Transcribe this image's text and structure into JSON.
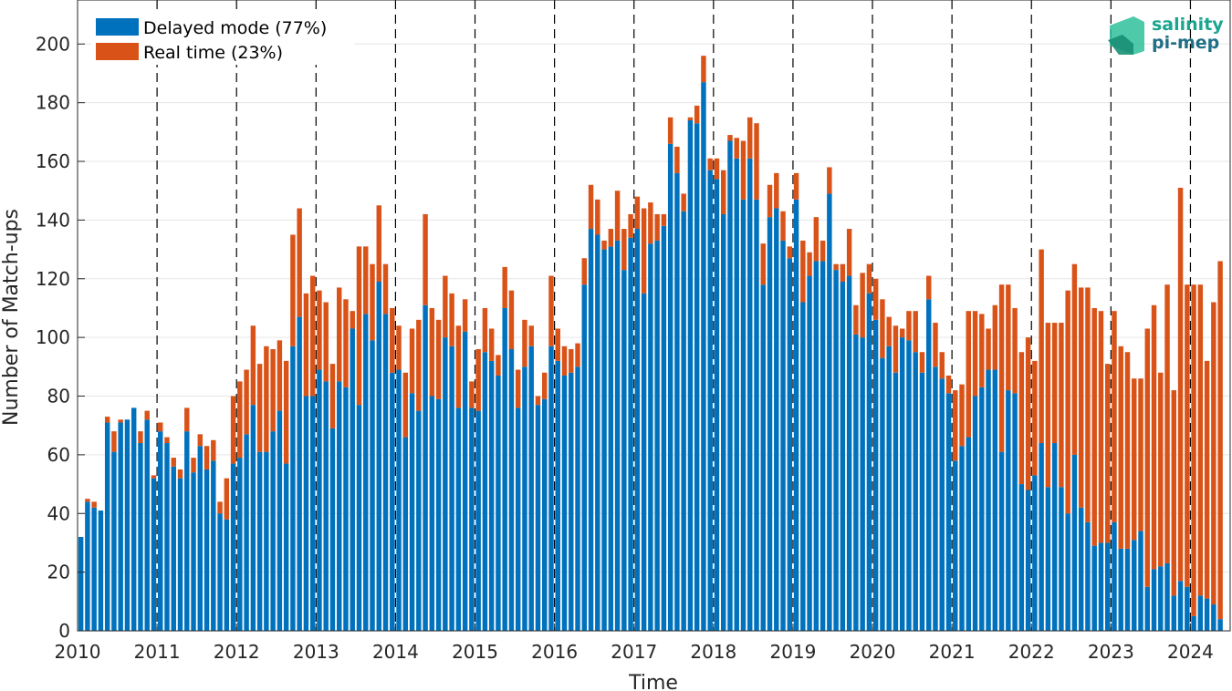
{
  "chart_data": {
    "type": "bar",
    "stacked": true,
    "xlabel": "Time",
    "ylabel": "Number of Match-ups",
    "ylim": [
      0,
      215
    ],
    "yticks": [
      0,
      20,
      40,
      60,
      80,
      100,
      120,
      140,
      160,
      180,
      200
    ],
    "xticks": [
      "2010",
      "2011",
      "2012",
      "2013",
      "2014",
      "2015",
      "2016",
      "2017",
      "2018",
      "2019",
      "2020",
      "2021",
      "2022",
      "2023",
      "2024"
    ],
    "xrange": [
      "2010-01",
      "2024-06"
    ],
    "year_divider_lines": "dashed vertical line at each year start",
    "grid": true,
    "legend_position": "top-left",
    "logo": {
      "line1": "salinity",
      "line2": "pi-mep"
    },
    "colors": {
      "delayed": "#0072bd",
      "realtime": "#d95319"
    },
    "series": [
      {
        "name": "Delayed mode (77%)",
        "color": "#0072bd"
      },
      {
        "name": "Real time (23%)",
        "color": "#d95319"
      }
    ],
    "categories": [
      "2010-01",
      "2010-02",
      "2010-03",
      "2010-04",
      "2010-05",
      "2010-06",
      "2010-07",
      "2010-08",
      "2010-09",
      "2010-10",
      "2010-11",
      "2010-12",
      "2011-01",
      "2011-02",
      "2011-03",
      "2011-04",
      "2011-05",
      "2011-06",
      "2011-07",
      "2011-08",
      "2011-09",
      "2011-10",
      "2011-11",
      "2011-12",
      "2012-01",
      "2012-02",
      "2012-03",
      "2012-04",
      "2012-05",
      "2012-06",
      "2012-07",
      "2012-08",
      "2012-09",
      "2012-10",
      "2012-11",
      "2012-12",
      "2013-01",
      "2013-02",
      "2013-03",
      "2013-04",
      "2013-05",
      "2013-06",
      "2013-07",
      "2013-08",
      "2013-09",
      "2013-10",
      "2013-11",
      "2013-12",
      "2014-01",
      "2014-02",
      "2014-03",
      "2014-04",
      "2014-05",
      "2014-06",
      "2014-07",
      "2014-08",
      "2014-09",
      "2014-10",
      "2014-11",
      "2014-12",
      "2015-01",
      "2015-02",
      "2015-03",
      "2015-04",
      "2015-05",
      "2015-06",
      "2015-07",
      "2015-08",
      "2015-09",
      "2015-10",
      "2015-11",
      "2015-12",
      "2016-01",
      "2016-02",
      "2016-03",
      "2016-04",
      "2016-05",
      "2016-06",
      "2016-07",
      "2016-08",
      "2016-09",
      "2016-10",
      "2016-11",
      "2016-12",
      "2017-01",
      "2017-02",
      "2017-03",
      "2017-04",
      "2017-05",
      "2017-06",
      "2017-07",
      "2017-08",
      "2017-09",
      "2017-10",
      "2017-11",
      "2017-12",
      "2018-01",
      "2018-02",
      "2018-03",
      "2018-04",
      "2018-05",
      "2018-06",
      "2018-07",
      "2018-08",
      "2018-09",
      "2018-10",
      "2018-11",
      "2018-12",
      "2019-01",
      "2019-02",
      "2019-03",
      "2019-04",
      "2019-05",
      "2019-06",
      "2019-07",
      "2019-08",
      "2019-09",
      "2019-10",
      "2019-11",
      "2019-12",
      "2020-01",
      "2020-02",
      "2020-03",
      "2020-04",
      "2020-05",
      "2020-06",
      "2020-07",
      "2020-08",
      "2020-09",
      "2020-10",
      "2020-11",
      "2020-12",
      "2021-01",
      "2021-02",
      "2021-03",
      "2021-04",
      "2021-05",
      "2021-06",
      "2021-07",
      "2021-08",
      "2021-09",
      "2021-10",
      "2021-11",
      "2021-12",
      "2022-01",
      "2022-02",
      "2022-03",
      "2022-04",
      "2022-05",
      "2022-06",
      "2022-07",
      "2022-08",
      "2022-09",
      "2022-10",
      "2022-11",
      "2022-12",
      "2023-01",
      "2023-02",
      "2023-03",
      "2023-04",
      "2023-05",
      "2023-06",
      "2023-07",
      "2023-08",
      "2023-09",
      "2023-10",
      "2023-11",
      "2023-12",
      "2024-01",
      "2024-02",
      "2024-03",
      "2024-04",
      "2024-05"
    ],
    "delayed": [
      32,
      44,
      42,
      41,
      71,
      61,
      71,
      72,
      76,
      64,
      72,
      52,
      68,
      64,
      56,
      52,
      68,
      54,
      63,
      55,
      58,
      40,
      38,
      57,
      59,
      67,
      77,
      61,
      61,
      68,
      75,
      57,
      97,
      107,
      80,
      80,
      89,
      85,
      69,
      85,
      83,
      103,
      77,
      108,
      99,
      119,
      108,
      88,
      89,
      66,
      81,
      75,
      111,
      80,
      79,
      100,
      97,
      76,
      102,
      76,
      75,
      95,
      92,
      87,
      110,
      96,
      76,
      90,
      97,
      77,
      79,
      97,
      92,
      87,
      88,
      90,
      118,
      137,
      135,
      130,
      131,
      133,
      123,
      134,
      137,
      115,
      132,
      133,
      138,
      166,
      156,
      143,
      174,
      173,
      187,
      157,
      154,
      142,
      167,
      161,
      147,
      161,
      147,
      118,
      141,
      144,
      133,
      127,
      147,
      112,
      121,
      126,
      126,
      149,
      123,
      119,
      121,
      101,
      100,
      115,
      106,
      93,
      97,
      88,
      100,
      99,
      95,
      88,
      113,
      90,
      86,
      81,
      58,
      63,
      66,
      80,
      83,
      89,
      89,
      61,
      82,
      81,
      50,
      48,
      53,
      64,
      49,
      64,
      49,
      40,
      60,
      42,
      37,
      29,
      30,
      30,
      37,
      28,
      28,
      31,
      34,
      15,
      21,
      22,
      23,
      12,
      17,
      15,
      5,
      12,
      11,
      9,
      4
    ],
    "realtime": [
      0,
      1,
      2,
      0,
      2,
      7,
      1,
      0,
      0,
      4,
      3,
      1,
      3,
      2,
      3,
      3,
      8,
      5,
      4,
      8,
      7,
      4,
      14,
      23,
      26,
      22,
      27,
      30,
      36,
      28,
      24,
      35,
      38,
      37,
      35,
      41,
      27,
      27,
      22,
      32,
      30,
      6,
      54,
      23,
      26,
      26,
      17,
      22,
      15,
      22,
      22,
      31,
      31,
      30,
      27,
      21,
      18,
      28,
      11,
      9,
      21,
      15,
      11,
      7,
      14,
      20,
      13,
      16,
      7,
      3,
      9,
      24,
      11,
      10,
      8,
      8,
      9,
      15,
      12,
      3,
      6,
      17,
      14,
      8,
      11,
      29,
      14,
      9,
      4,
      9,
      9,
      6,
      1,
      6,
      9,
      4,
      7,
      15,
      2,
      7,
      20,
      14,
      26,
      14,
      11,
      12,
      10,
      4,
      9,
      21,
      8,
      15,
      7,
      9,
      2,
      6,
      16,
      10,
      22,
      10,
      14,
      20,
      10,
      16,
      3,
      10,
      14,
      7,
      8,
      15,
      9,
      6,
      24,
      21,
      43,
      29,
      25,
      14,
      22,
      57,
      36,
      29,
      45,
      52,
      39,
      66,
      56,
      41,
      56,
      76,
      65,
      75,
      80,
      81,
      79,
      61,
      72,
      69,
      67,
      55,
      52,
      88,
      90,
      66,
      95,
      70,
      134,
      103,
      113,
      106,
      81,
      103,
      122
    ]
  }
}
